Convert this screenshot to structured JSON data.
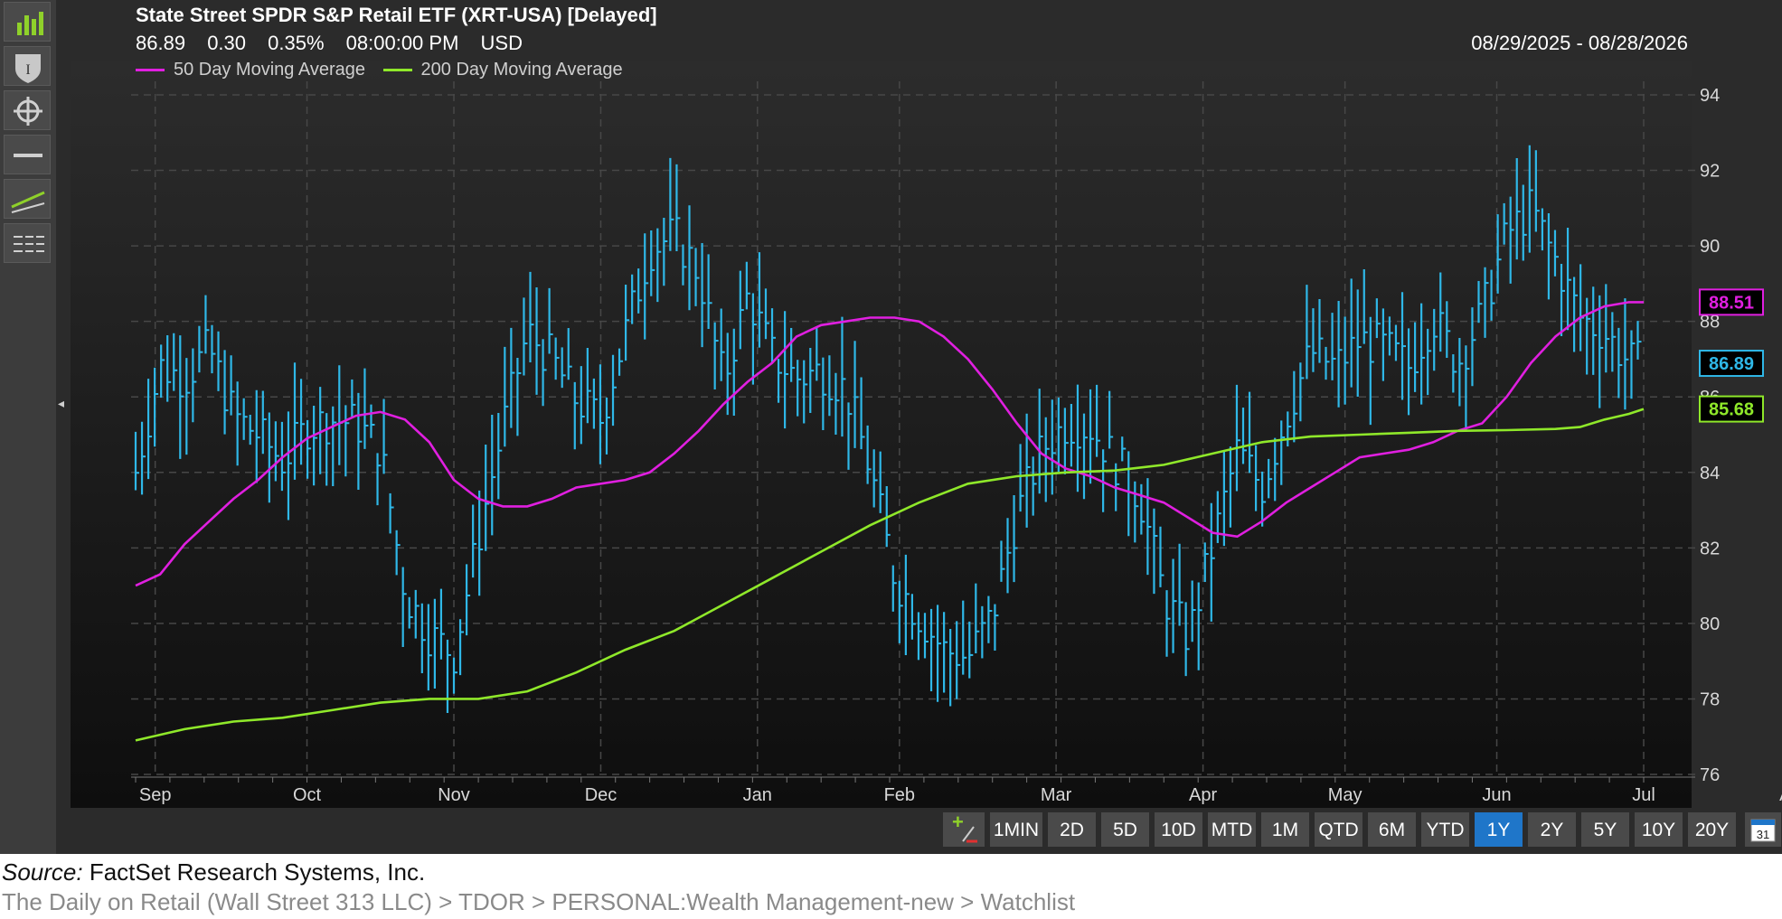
{
  "header": {
    "title": "State Street SPDR S&P Retail ETF (XRT-USA) [Delayed]",
    "last": "86.89",
    "change": "0.30",
    "change_pct": "0.35%",
    "time": "08:00:00 PM",
    "currency": "USD",
    "date_range": "08/29/2025 - 08/28/2026"
  },
  "toolbar": {
    "buttons": [
      "bar-chart-icon",
      "shield-icon",
      "crosshair-icon",
      "horizontal-line-icon",
      "trendline-icon",
      "grid-list-icon"
    ]
  },
  "range_bar": {
    "add_label": "+/-",
    "buttons": [
      "1MIN",
      "2D",
      "5D",
      "10D",
      "MTD",
      "1M",
      "QTD",
      "6M",
      "YTD",
      "1Y",
      "2Y",
      "5Y",
      "10Y",
      "20Y"
    ],
    "active": "1Y",
    "calendar_label": "31"
  },
  "footer": {
    "source_prefix": "Source:",
    "source_text": " FactSet Research Systems, Inc.",
    "breadcrumb": "The Daily on Retail  (Wall Street 313 LLC) > TDOR > PERSONAL:Wealth Management-new > Watchlist"
  },
  "colors": {
    "background": "#1e1e1e",
    "price": "#2fb8e8",
    "ma50": "#e01fe0",
    "ma200": "#8fe82a",
    "grid": "#4a4a4a"
  },
  "chart_data": {
    "type": "line",
    "title": "State Street SPDR S&P Retail ETF (XRT-USA) [Delayed]",
    "price_style": "HLC bars",
    "ylim": [
      76,
      95
    ],
    "y_ticks": [
      76,
      78,
      80,
      82,
      84,
      86,
      88,
      90,
      92,
      94
    ],
    "x_tick_labels": [
      "Sep",
      "Oct",
      "Nov",
      "Dec",
      "Jan",
      "Feb",
      "Mar",
      "Apr",
      "May",
      "Jun",
      "Jul",
      "Aug"
    ],
    "x_tick_days": [
      4,
      35,
      65,
      95,
      127,
      156,
      188,
      218,
      247,
      278,
      308,
      339
    ],
    "grid": true,
    "legend_position": "top-left",
    "last_value_labels": [
      {
        "series": "50 Day Moving Average",
        "value": "88.51"
      },
      {
        "series": "Price",
        "value": "86.89"
      },
      {
        "series": "200 Day Moving Average",
        "value": "85.68"
      }
    ],
    "series": [
      {
        "name": "50 Day Moving Average",
        "color": "#e01fe0",
        "points": [
          [
            0,
            81.0
          ],
          [
            5,
            81.3
          ],
          [
            10,
            82.1
          ],
          [
            15,
            82.7
          ],
          [
            20,
            83.3
          ],
          [
            25,
            83.8
          ],
          [
            30,
            84.4
          ],
          [
            35,
            84.9
          ],
          [
            40,
            85.2
          ],
          [
            45,
            85.5
          ],
          [
            50,
            85.6
          ],
          [
            55,
            85.4
          ],
          [
            60,
            84.8
          ],
          [
            65,
            83.8
          ],
          [
            70,
            83.3
          ],
          [
            75,
            83.1
          ],
          [
            80,
            83.1
          ],
          [
            85,
            83.3
          ],
          [
            90,
            83.6
          ],
          [
            95,
            83.7
          ],
          [
            100,
            83.8
          ],
          [
            105,
            84.0
          ],
          [
            110,
            84.5
          ],
          [
            115,
            85.1
          ],
          [
            120,
            85.8
          ],
          [
            125,
            86.4
          ],
          [
            130,
            86.9
          ],
          [
            135,
            87.6
          ],
          [
            140,
            87.9
          ],
          [
            145,
            88.0
          ],
          [
            150,
            88.1
          ],
          [
            155,
            88.1
          ],
          [
            160,
            88.0
          ],
          [
            165,
            87.6
          ],
          [
            170,
            87.0
          ],
          [
            175,
            86.2
          ],
          [
            180,
            85.3
          ],
          [
            185,
            84.5
          ],
          [
            190,
            84.1
          ],
          [
            195,
            83.9
          ],
          [
            200,
            83.6
          ],
          [
            205,
            83.4
          ],
          [
            210,
            83.2
          ],
          [
            215,
            82.8
          ],
          [
            220,
            82.4
          ],
          [
            225,
            82.3
          ],
          [
            230,
            82.7
          ],
          [
            235,
            83.2
          ],
          [
            240,
            83.6
          ],
          [
            245,
            84.0
          ],
          [
            250,
            84.4
          ],
          [
            255,
            84.5
          ],
          [
            260,
            84.6
          ],
          [
            265,
            84.8
          ],
          [
            270,
            85.1
          ],
          [
            275,
            85.3
          ],
          [
            280,
            86.0
          ],
          [
            285,
            86.9
          ],
          [
            290,
            87.6
          ],
          [
            295,
            88.1
          ],
          [
            300,
            88.4
          ],
          [
            305,
            88.51
          ],
          [
            308,
            88.51
          ]
        ]
      },
      {
        "name": "200 Day Moving Average",
        "color": "#8fe82a",
        "points": [
          [
            0,
            76.9
          ],
          [
            10,
            77.2
          ],
          [
            20,
            77.4
          ],
          [
            30,
            77.5
          ],
          [
            40,
            77.7
          ],
          [
            50,
            77.9
          ],
          [
            60,
            78.0
          ],
          [
            70,
            78.0
          ],
          [
            80,
            78.2
          ],
          [
            90,
            78.7
          ],
          [
            100,
            79.3
          ],
          [
            110,
            79.8
          ],
          [
            120,
            80.5
          ],
          [
            130,
            81.2
          ],
          [
            140,
            81.9
          ],
          [
            150,
            82.6
          ],
          [
            160,
            83.2
          ],
          [
            170,
            83.7
          ],
          [
            180,
            83.9
          ],
          [
            190,
            84.0
          ],
          [
            200,
            84.05
          ],
          [
            210,
            84.2
          ],
          [
            220,
            84.5
          ],
          [
            230,
            84.8
          ],
          [
            240,
            84.95
          ],
          [
            250,
            85.0
          ],
          [
            260,
            85.05
          ],
          [
            270,
            85.1
          ],
          [
            280,
            85.12
          ],
          [
            290,
            85.15
          ],
          [
            295,
            85.2
          ],
          [
            300,
            85.4
          ],
          [
            305,
            85.55
          ],
          [
            308,
            85.68
          ]
        ]
      },
      {
        "name": "Price",
        "color": "#2fb8e8",
        "points": [
          [
            0,
            84.0
          ],
          [
            5,
            86.8
          ],
          [
            10,
            86.5
          ],
          [
            15,
            87.3
          ],
          [
            20,
            85.5
          ],
          [
            25,
            85.0
          ],
          [
            30,
            84.3
          ],
          [
            35,
            85.2
          ],
          [
            40,
            85.4
          ],
          [
            45,
            85.3
          ],
          [
            50,
            84.6
          ],
          [
            55,
            80.8
          ],
          [
            60,
            79.7
          ],
          [
            65,
            79.2
          ],
          [
            70,
            82.3
          ],
          [
            75,
            85.2
          ],
          [
            80,
            87.7
          ],
          [
            85,
            87.0
          ],
          [
            90,
            85.9
          ],
          [
            95,
            85.4
          ],
          [
            100,
            87.7
          ],
          [
            105,
            89.9
          ],
          [
            110,
            90.3
          ],
          [
            115,
            89.3
          ],
          [
            120,
            86.4
          ],
          [
            125,
            88.7
          ],
          [
            130,
            87.1
          ],
          [
            135,
            86.5
          ],
          [
            140,
            86.7
          ],
          [
            145,
            86.2
          ],
          [
            150,
            84.1
          ],
          [
            155,
            81.2
          ],
          [
            160,
            80.2
          ],
          [
            165,
            79.3
          ],
          [
            170,
            79.1
          ],
          [
            175,
            80.2
          ],
          [
            180,
            82.9
          ],
          [
            185,
            84.6
          ],
          [
            190,
            85.3
          ],
          [
            195,
            85.2
          ],
          [
            200,
            84.3
          ],
          [
            205,
            83.4
          ],
          [
            210,
            80.7
          ],
          [
            215,
            79.6
          ],
          [
            220,
            82.1
          ],
          [
            225,
            84.6
          ],
          [
            230,
            83.6
          ],
          [
            235,
            85.5
          ],
          [
            240,
            87.2
          ],
          [
            245,
            86.8
          ],
          [
            250,
            87.5
          ],
          [
            255,
            87.3
          ],
          [
            260,
            86.8
          ],
          [
            265,
            88.1
          ],
          [
            270,
            86.9
          ],
          [
            275,
            88.2
          ],
          [
            280,
            90.3
          ],
          [
            285,
            91.0
          ],
          [
            290,
            89.6
          ],
          [
            295,
            88.1
          ],
          [
            300,
            87.7
          ],
          [
            305,
            86.9
          ],
          [
            308,
            86.89
          ]
        ]
      }
    ]
  }
}
